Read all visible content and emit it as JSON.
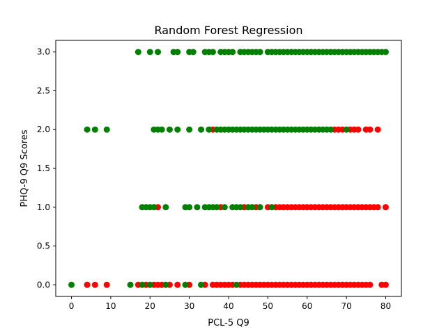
{
  "chart_data": {
    "type": "scatter",
    "title": "Random Forest Regression",
    "xlabel": "PCL-5 Q9",
    "ylabel": "PHQ-9 Q9 Scores",
    "xlim": [
      -4,
      84
    ],
    "ylim": [
      -0.15,
      3.15
    ],
    "xticks": [
      "0",
      "10",
      "20",
      "30",
      "40",
      "50",
      "60",
      "70",
      "80"
    ],
    "yticks": [
      "0.0",
      "0.5",
      "1.0",
      "1.5",
      "2.0",
      "2.5",
      "3.0"
    ],
    "grid": false,
    "colors": {
      "red": "#ff0000",
      "green": "#008000"
    },
    "series": [
      {
        "color": "red",
        "points": [
          [
            4,
            0
          ],
          [
            6,
            0
          ],
          [
            9,
            0
          ],
          [
            17,
            0
          ],
          [
            19,
            0
          ],
          [
            21,
            0
          ],
          [
            22,
            0
          ],
          [
            23,
            0
          ],
          [
            25,
            0
          ],
          [
            27,
            0
          ],
          [
            30,
            0
          ],
          [
            34,
            0
          ],
          [
            36,
            0
          ],
          [
            37,
            0
          ],
          [
            38,
            0
          ],
          [
            39,
            0
          ],
          [
            40,
            0
          ],
          [
            41,
            0
          ],
          [
            43,
            0
          ],
          [
            44,
            0
          ],
          [
            45,
            0
          ],
          [
            46,
            0
          ],
          [
            47,
            0
          ],
          [
            48,
            0
          ],
          [
            49,
            0
          ],
          [
            50,
            0
          ],
          [
            51,
            0
          ],
          [
            52,
            0
          ],
          [
            53,
            0
          ],
          [
            54,
            0
          ],
          [
            55,
            0
          ],
          [
            56,
            0
          ],
          [
            57,
            0
          ],
          [
            58,
            0
          ],
          [
            59,
            0
          ],
          [
            60,
            0
          ],
          [
            61,
            0
          ],
          [
            62,
            0
          ],
          [
            63,
            0
          ],
          [
            64,
            0
          ],
          [
            65,
            0
          ],
          [
            66,
            0
          ],
          [
            67,
            0
          ],
          [
            68,
            0
          ],
          [
            69,
            0
          ],
          [
            70,
            0
          ],
          [
            71,
            0
          ],
          [
            72,
            0
          ],
          [
            73,
            0
          ],
          [
            74,
            0
          ],
          [
            75,
            0
          ],
          [
            76,
            0
          ],
          [
            79,
            0
          ],
          [
            80,
            0
          ],
          [
            22,
            1
          ],
          [
            38,
            1
          ],
          [
            44,
            1
          ],
          [
            47,
            1
          ],
          [
            50,
            1
          ],
          [
            52,
            1
          ],
          [
            53,
            1
          ],
          [
            54,
            1
          ],
          [
            55,
            1
          ],
          [
            56,
            1
          ],
          [
            57,
            1
          ],
          [
            58,
            1
          ],
          [
            59,
            1
          ],
          [
            60,
            1
          ],
          [
            61,
            1
          ],
          [
            62,
            1
          ],
          [
            63,
            1
          ],
          [
            64,
            1
          ],
          [
            65,
            1
          ],
          [
            66,
            1
          ],
          [
            67,
            1
          ],
          [
            68,
            1
          ],
          [
            69,
            1
          ],
          [
            70,
            1
          ],
          [
            71,
            1
          ],
          [
            72,
            1
          ],
          [
            73,
            1
          ],
          [
            74,
            1
          ],
          [
            75,
            1
          ],
          [
            76,
            1
          ],
          [
            77,
            1
          ],
          [
            78,
            1
          ],
          [
            80,
            1
          ],
          [
            36,
            2
          ],
          [
            67,
            2
          ],
          [
            68,
            2
          ],
          [
            69,
            2
          ],
          [
            71,
            2
          ],
          [
            72,
            2
          ],
          [
            73,
            2
          ],
          [
            75,
            2
          ],
          [
            76,
            2
          ],
          [
            78,
            2
          ]
        ]
      },
      {
        "color": "green",
        "points": [
          [
            0,
            0
          ],
          [
            15,
            0
          ],
          [
            18,
            0
          ],
          [
            20,
            0
          ],
          [
            24,
            0
          ],
          [
            29,
            0
          ],
          [
            33,
            0
          ],
          [
            42,
            0
          ],
          [
            18,
            1
          ],
          [
            19,
            1
          ],
          [
            20,
            1
          ],
          [
            21,
            1
          ],
          [
            24,
            1
          ],
          [
            29,
            1
          ],
          [
            30,
            1
          ],
          [
            32,
            1
          ],
          [
            34,
            1
          ],
          [
            35,
            1
          ],
          [
            36,
            1
          ],
          [
            37,
            1
          ],
          [
            39,
            1
          ],
          [
            41,
            1
          ],
          [
            42,
            1
          ],
          [
            43,
            1
          ],
          [
            45,
            1
          ],
          [
            46,
            1
          ],
          [
            48,
            1
          ],
          [
            51,
            1
          ],
          [
            4,
            2
          ],
          [
            6,
            2
          ],
          [
            9,
            2
          ],
          [
            21,
            2
          ],
          [
            22,
            2
          ],
          [
            23,
            2
          ],
          [
            25,
            2
          ],
          [
            27,
            2
          ],
          [
            30,
            2
          ],
          [
            33,
            2
          ],
          [
            35,
            2
          ],
          [
            37,
            2
          ],
          [
            38,
            2
          ],
          [
            39,
            2
          ],
          [
            40,
            2
          ],
          [
            41,
            2
          ],
          [
            42,
            2
          ],
          [
            43,
            2
          ],
          [
            44,
            2
          ],
          [
            45,
            2
          ],
          [
            46,
            2
          ],
          [
            47,
            2
          ],
          [
            48,
            2
          ],
          [
            49,
            2
          ],
          [
            50,
            2
          ],
          [
            51,
            2
          ],
          [
            52,
            2
          ],
          [
            53,
            2
          ],
          [
            54,
            2
          ],
          [
            55,
            2
          ],
          [
            56,
            2
          ],
          [
            57,
            2
          ],
          [
            58,
            2
          ],
          [
            59,
            2
          ],
          [
            60,
            2
          ],
          [
            61,
            2
          ],
          [
            62,
            2
          ],
          [
            63,
            2
          ],
          [
            64,
            2
          ],
          [
            65,
            2
          ],
          [
            66,
            2
          ],
          [
            70,
            2
          ],
          [
            17,
            3
          ],
          [
            20,
            3
          ],
          [
            22,
            3
          ],
          [
            26,
            3
          ],
          [
            27,
            3
          ],
          [
            30,
            3
          ],
          [
            31,
            3
          ],
          [
            34,
            3
          ],
          [
            35,
            3
          ],
          [
            36,
            3
          ],
          [
            38,
            3
          ],
          [
            39,
            3
          ],
          [
            40,
            3
          ],
          [
            41,
            3
          ],
          [
            43,
            3
          ],
          [
            44,
            3
          ],
          [
            45,
            3
          ],
          [
            46,
            3
          ],
          [
            47,
            3
          ],
          [
            48,
            3
          ],
          [
            50,
            3
          ],
          [
            51,
            3
          ],
          [
            52,
            3
          ],
          [
            53,
            3
          ],
          [
            54,
            3
          ],
          [
            55,
            3
          ],
          [
            56,
            3
          ],
          [
            57,
            3
          ],
          [
            58,
            3
          ],
          [
            59,
            3
          ],
          [
            60,
            3
          ],
          [
            61,
            3
          ],
          [
            62,
            3
          ],
          [
            63,
            3
          ],
          [
            64,
            3
          ],
          [
            65,
            3
          ],
          [
            66,
            3
          ],
          [
            67,
            3
          ],
          [
            68,
            3
          ],
          [
            69,
            3
          ],
          [
            70,
            3
          ],
          [
            71,
            3
          ],
          [
            72,
            3
          ],
          [
            73,
            3
          ],
          [
            74,
            3
          ],
          [
            75,
            3
          ],
          [
            76,
            3
          ],
          [
            77,
            3
          ],
          [
            78,
            3
          ],
          [
            79,
            3
          ],
          [
            80,
            3
          ]
        ]
      }
    ]
  }
}
